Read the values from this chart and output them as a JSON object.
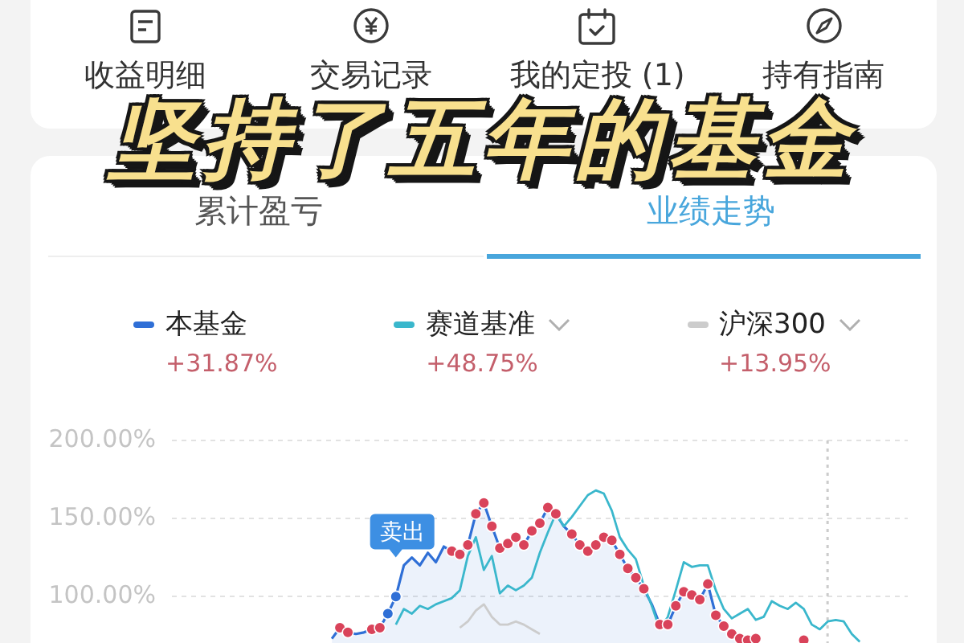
{
  "chart_data": [
    {
      "type": "other",
      "title": "坚持了五年的基金",
      "annotations": [
        "收益明细",
        "交易记录",
        "我的定投 (1)",
        "持有指南",
        "累计盈亏",
        "业绩走势"
      ]
    },
    {
      "type": "line",
      "categories": [
        null,
        null,
        null,
        null,
        null,
        null,
        null,
        null,
        null,
        null,
        null,
        null,
        null,
        null,
        null,
        null,
        null,
        null,
        null,
        null,
        null,
        null,
        null,
        null,
        null,
        null,
        null,
        null,
        null,
        null,
        null,
        null,
        null,
        null,
        null,
        null,
        null,
        null,
        null,
        null,
        null,
        null,
        null,
        null,
        null,
        null,
        null,
        null,
        null,
        null,
        null,
        null,
        null,
        null,
        null,
        null,
        null,
        null,
        null,
        null,
        null,
        null,
        null,
        null,
        null,
        null,
        null,
        null,
        null,
        null,
        null,
        null,
        null,
        null,
        null,
        null,
        null,
        null,
        null,
        null,
        null,
        null,
        null,
        null,
        null,
        null,
        null,
        null,
        null,
        null,
        null,
        null,
        null
      ],
      "series": [
        {
          "name": "本基金",
          "type": "area",
          "color": "#2f6fd6",
          "values": [
            null,
            null,
            null,
            null,
            null,
            null,
            null,
            null,
            null,
            null,
            null,
            null,
            null,
            null,
            null,
            null,
            null,
            null,
            null,
            null,
            73,
            80,
            77,
            76,
            77,
            79,
            80,
            89,
            100,
            120,
            125,
            120,
            128,
            122,
            132,
            129,
            127,
            133,
            153,
            160,
            145,
            131,
            134,
            138,
            133,
            142,
            147,
            157,
            153,
            145,
            140,
            133,
            129,
            133,
            138,
            136,
            127,
            118,
            112,
            105,
            95,
            82,
            82,
            94,
            103,
            101,
            98,
            108,
            88,
            81,
            76,
            73,
            72,
            73,
            null,
            null,
            null,
            null,
            null,
            null,
            null,
            null,
            null,
            null,
            null,
            null,
            null,
            null,
            null,
            null,
            null,
            null,
            null
          ]
        },
        {
          "name": "赛道基准",
          "color": "#3ab7cc",
          "values": [
            null,
            null,
            null,
            null,
            null,
            null,
            null,
            null,
            null,
            null,
            null,
            null,
            null,
            null,
            null,
            null,
            null,
            null,
            null,
            null,
            null,
            null,
            null,
            null,
            null,
            null,
            null,
            null,
            82,
            92,
            89,
            94,
            92,
            95,
            97,
            99,
            104,
            126,
            138,
            117,
            126,
            102,
            107,
            104,
            107,
            112,
            128,
            141,
            153,
            145,
            151,
            158,
            165,
            168,
            166,
            155,
            138,
            130,
            124,
            107,
            94,
            79,
            87,
            104,
            122,
            119,
            120,
            120,
            104,
            92,
            86,
            89,
            92,
            85,
            87,
            97,
            94,
            92,
            96,
            92,
            82,
            79,
            84,
            85,
            84,
            76,
            71,
            null,
            null,
            null,
            null,
            null,
            null
          ]
        },
        {
          "name": "沪深300",
          "color": "#cccccc",
          "values": [
            null,
            null,
            null,
            null,
            null,
            null,
            null,
            null,
            null,
            null,
            null,
            null,
            null,
            null,
            null,
            null,
            null,
            null,
            null,
            null,
            null,
            null,
            null,
            null,
            null,
            null,
            null,
            null,
            null,
            null,
            null,
            null,
            null,
            null,
            null,
            null,
            80,
            84,
            91,
            95,
            87,
            82,
            82,
            84,
            82,
            79,
            76,
            null,
            null,
            null,
            null,
            null,
            null,
            null,
            null,
            null,
            null,
            null,
            null,
            null,
            null,
            null,
            null,
            null,
            null,
            null,
            null,
            null,
            null,
            null,
            null,
            null,
            null,
            null,
            null,
            null,
            null,
            null,
            null,
            null,
            null,
            null,
            null,
            null,
            null,
            null,
            null,
            null,
            null,
            null,
            null,
            null,
            null
          ]
        },
        {
          "type": "scatter",
          "color": "#d9435a",
          "marker": "circle",
          "values": [
            null,
            null,
            null,
            null,
            null,
            null,
            null,
            null,
            null,
            null,
            null,
            null,
            null,
            null,
            null,
            null,
            null,
            null,
            null,
            null,
            null,
            80,
            77,
            null,
            null,
            79,
            80,
            null,
            null,
            null,
            null,
            null,
            null,
            null,
            null,
            129,
            127,
            133,
            153,
            160,
            145,
            131,
            134,
            138,
            133,
            142,
            147,
            157,
            153,
            null,
            140,
            133,
            129,
            133,
            138,
            136,
            127,
            118,
            112,
            105,
            null,
            82,
            82,
            94,
            103,
            101,
            98,
            108,
            88,
            81,
            76,
            73,
            72,
            73,
            null,
            null,
            null,
            null,
            null,
            72,
            null,
            null,
            null,
            null,
            null,
            null,
            null,
            null,
            null,
            null,
            null,
            null,
            null
          ]
        },
        {
          "type": "scatter",
          "color": "#2f6fd6",
          "marker": "circle",
          "values": [
            null,
            null,
            null,
            null,
            null,
            null,
            null,
            null,
            null,
            null,
            null,
            null,
            null,
            null,
            null,
            null,
            null,
            null,
            null,
            null,
            null,
            null,
            null,
            null,
            null,
            null,
            null,
            89,
            100,
            null,
            null,
            null,
            null,
            null,
            null,
            null,
            null,
            null,
            null,
            null,
            null,
            null,
            null,
            null,
            null,
            null,
            null,
            null,
            null,
            null,
            null,
            null,
            null,
            null,
            null,
            null,
            null,
            null,
            null,
            null,
            null,
            null,
            null,
            null,
            null,
            null,
            null,
            null,
            null,
            null,
            null,
            null,
            null,
            null,
            null,
            null,
            null,
            null,
            null,
            null,
            null,
            null,
            null,
            null,
            null,
            null,
            null,
            null,
            null,
            null,
            null,
            null,
            null
          ]
        }
      ],
      "ylim": [
        70,
        200
      ],
      "yticks": [
        {
          "value": 100,
          "label": "100.00%"
        },
        {
          "value": 150,
          "label": "150.00%"
        },
        {
          "value": 200,
          "label": "200.00%"
        }
      ],
      "grid": "y",
      "legend": "top",
      "tick_labels": "y",
      "annotations": [
        "+31.87%",
        "+48.75%",
        "+13.95%",
        {
          "text": "卖出",
          "y": 125
        }
      ]
    }
  ]
}
